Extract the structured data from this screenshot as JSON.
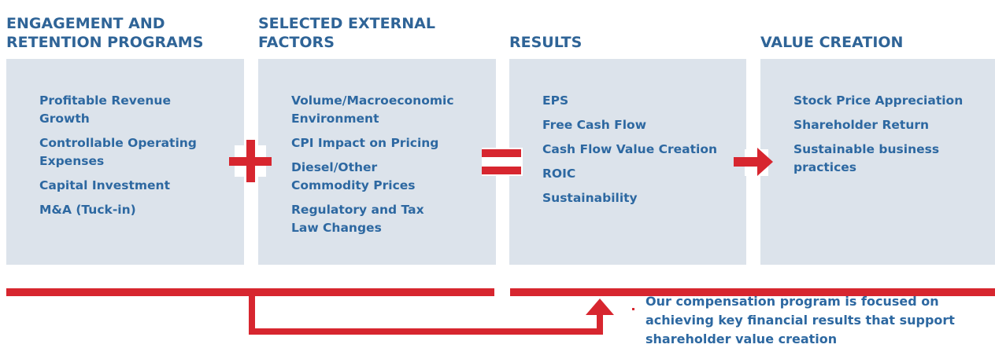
{
  "columns": [
    {
      "title": "ENGAGEMENT AND\nRETENTION PROGRAMS",
      "items": [
        "Profitable Revenue\nGrowth",
        "Controllable Operating\nExpenses",
        "Capital Investment",
        "M&A (Tuck-in)"
      ]
    },
    {
      "title": "SELECTED EXTERNAL\nFACTORS",
      "items": [
        "Volume/Macroeconomic\nEnvironment",
        "CPI Impact on Pricing",
        "Diesel/Other\nCommodity Prices",
        "Regulatory and Tax\nLaw Changes"
      ]
    },
    {
      "title": "RESULTS",
      "items": [
        "EPS",
        "Free Cash Flow",
        "Cash Flow Value Creation",
        "ROIC",
        "Sustainability"
      ]
    },
    {
      "title": "VALUE CREATION",
      "items": [
        "Stock Price Appreciation",
        "Shareholder Return",
        "Sustainable business\npractices"
      ]
    }
  ],
  "caption": "Our compensation program is focused on achieving key financial results that support shareholder value creation"
}
